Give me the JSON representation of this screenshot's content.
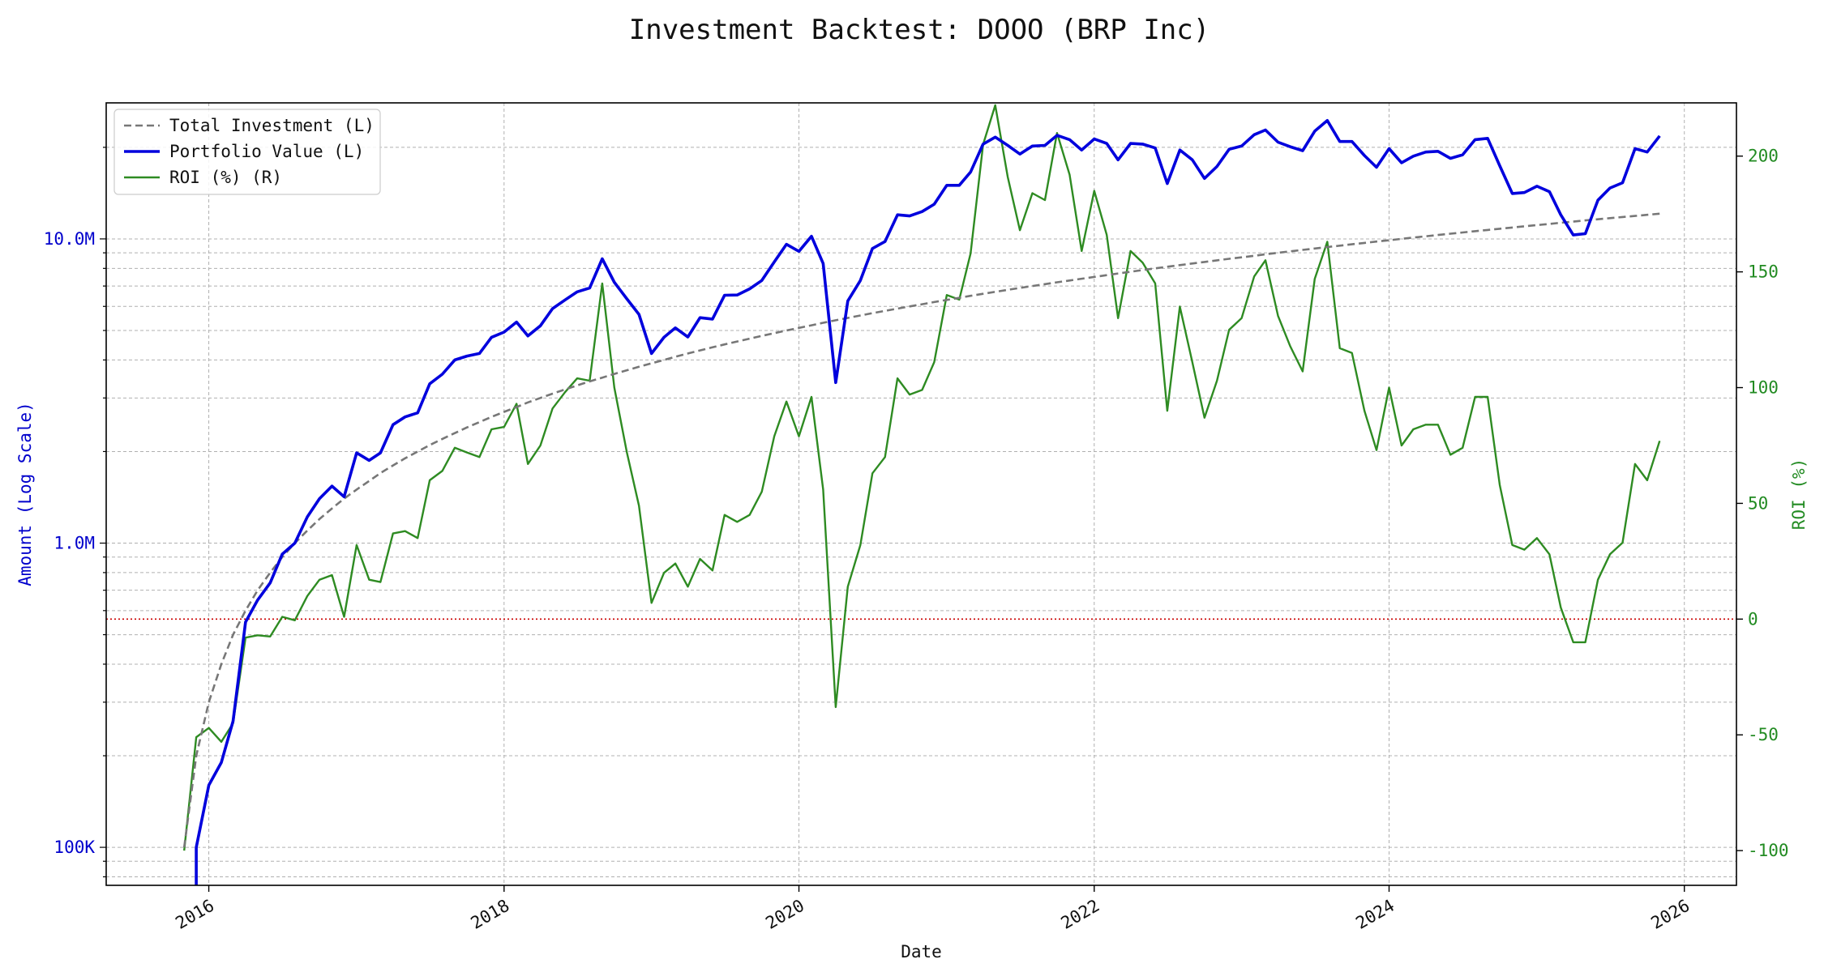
{
  "chart_data": {
    "type": "line",
    "title": "Investment Backtest: DOOO (BRP Inc)",
    "xlabel": "Date",
    "ylabel_left": "Amount (Log Scale)",
    "ylabel_right": "ROI (%)",
    "left_axis": {
      "scale": "log",
      "ylim": [
        75000,
        28000000
      ],
      "labeled_ticks": [
        100000,
        1000000,
        10000000
      ],
      "tick_labels": [
        "100K",
        "1.0M",
        "10.0M"
      ],
      "color": "#0000cc"
    },
    "right_axis": {
      "scale": "linear",
      "ylim": [
        -115,
        223
      ],
      "ticks": [
        -100,
        -50,
        0,
        50,
        100,
        150,
        200
      ],
      "tick_labels": [
        "-100",
        "-50",
        "0",
        "50",
        "100",
        "150",
        "200"
      ],
      "color": "#228b22"
    },
    "x_axis": {
      "xlim": [
        "2015-04-22",
        "2026-05-10"
      ],
      "ticks": [
        "2016-01-01",
        "2018-01-01",
        "2020-01-01",
        "2022-01-01",
        "2024-01-01",
        "2026-01-01"
      ],
      "tick_labels": [
        "2016",
        "2018",
        "2020",
        "2022",
        "2024",
        "2026"
      ]
    },
    "grid": true,
    "legend_position": "top-left",
    "reference_line": {
      "axis": "right",
      "value": 0,
      "color": "#cc0000",
      "style": "dotted"
    },
    "x": [
      "2015-11-01",
      "2015-12-01",
      "2016-01-01",
      "2016-02-01",
      "2016-03-01",
      "2016-04-01",
      "2016-05-01",
      "2016-06-01",
      "2016-07-01",
      "2016-08-01",
      "2016-09-01",
      "2016-10-01",
      "2016-11-01",
      "2016-12-01",
      "2017-01-01",
      "2017-02-01",
      "2017-03-01",
      "2017-04-01",
      "2017-05-01",
      "2017-06-01",
      "2017-07-01",
      "2017-08-01",
      "2017-09-01",
      "2017-10-01",
      "2017-11-01",
      "2017-12-01",
      "2018-01-01",
      "2018-02-01",
      "2018-03-01",
      "2018-04-01",
      "2018-05-01",
      "2018-06-01",
      "2018-07-01",
      "2018-08-01",
      "2018-09-01",
      "2018-10-01",
      "2018-11-01",
      "2018-12-01",
      "2019-01-01",
      "2019-02-01",
      "2019-03-01",
      "2019-04-01",
      "2019-05-01",
      "2019-06-01",
      "2019-07-01",
      "2019-08-01",
      "2019-09-01",
      "2019-10-01",
      "2019-11-01",
      "2019-12-01",
      "2020-01-01",
      "2020-02-01",
      "2020-03-01",
      "2020-04-01",
      "2020-05-01",
      "2020-06-01",
      "2020-07-01",
      "2020-08-01",
      "2020-09-01",
      "2020-10-01",
      "2020-11-01",
      "2020-12-01",
      "2021-01-01",
      "2021-02-01",
      "2021-03-01",
      "2021-04-01",
      "2021-05-01",
      "2021-06-01",
      "2021-07-01",
      "2021-08-01",
      "2021-09-01",
      "2021-10-01",
      "2021-11-01",
      "2021-12-01",
      "2022-01-01",
      "2022-02-01",
      "2022-03-01",
      "2022-04-01",
      "2022-05-01",
      "2022-06-01",
      "2022-07-01",
      "2022-08-01",
      "2022-09-01",
      "2022-10-01",
      "2022-11-01",
      "2022-12-01",
      "2023-01-01",
      "2023-02-01",
      "2023-03-01",
      "2023-04-01",
      "2023-05-01",
      "2023-06-01",
      "2023-07-01",
      "2023-08-01",
      "2023-09-01",
      "2023-10-01",
      "2023-11-01",
      "2023-12-01",
      "2024-01-01",
      "2024-02-01",
      "2024-03-01",
      "2024-04-01",
      "2024-05-01",
      "2024-06-01",
      "2024-07-01",
      "2024-08-01",
      "2024-09-01",
      "2024-10-01",
      "2024-11-01",
      "2024-12-01",
      "2025-01-01",
      "2025-02-01",
      "2025-03-01",
      "2025-04-01",
      "2025-05-01",
      "2025-06-01",
      "2025-07-01",
      "2025-08-01",
      "2025-09-01",
      "2025-10-01",
      "2025-11-01"
    ],
    "series": [
      {
        "name": "Total Investment (L)",
        "axis": "left",
        "color": "#777777",
        "style": "dashed",
        "values": [
          100000,
          200000,
          300000,
          400000,
          500000,
          600000,
          700000,
          800000,
          900000,
          1000000,
          1100000,
          1200000,
          1300000,
          1400000,
          1500000,
          1600000,
          1700000,
          1800000,
          1900000,
          2000000,
          2100000,
          2200000,
          2300000,
          2400000,
          2500000,
          2600000,
          2700000,
          2800000,
          2900000,
          3000000,
          3100000,
          3200000,
          3300000,
          3400000,
          3500000,
          3600000,
          3700000,
          3800000,
          3900000,
          4000000,
          4100000,
          4200000,
          4300000,
          4400000,
          4500000,
          4600000,
          4700000,
          4800000,
          4900000,
          5000000,
          5100000,
          5200000,
          5300000,
          5400000,
          5500000,
          5600000,
          5700000,
          5800000,
          5900000,
          6000000,
          6100000,
          6200000,
          6300000,
          6400000,
          6500000,
          6600000,
          6700000,
          6800000,
          6900000,
          7000000,
          7100000,
          7200000,
          7300000,
          7400000,
          7500000,
          7600000,
          7700000,
          7800000,
          7900000,
          8000000,
          8100000,
          8200000,
          8300000,
          8400000,
          8500000,
          8600000,
          8700000,
          8800000,
          8900000,
          9000000,
          9100000,
          9200000,
          9300000,
          9400000,
          9500000,
          9600000,
          9700000,
          9800000,
          9900000,
          10000000,
          10100000,
          10200000,
          10300000,
          10400000,
          10500000,
          10600000,
          10700000,
          10800000,
          10900000,
          11000000,
          11100000,
          11200000,
          11300000,
          11400000,
          11500000,
          11600000,
          11700000,
          11800000,
          11900000,
          12000000,
          12100000
        ]
      },
      {
        "name": "Portfolio Value (L)",
        "axis": "left",
        "color": "#0000dd",
        "style": "solid",
        "values": [
          null,
          100000,
          160000,
          190000,
          260000,
          550000,
          650000,
          740000,
          920000,
          1000000,
          1220000,
          1400000,
          1540000,
          1420000,
          1980000,
          1870000,
          1980000,
          2450000,
          2600000,
          2680000,
          3340000,
          3590000,
          4000000,
          4120000,
          4200000,
          4750000,
          4940000,
          5330000,
          4800000,
          5180000,
          5900000,
          6300000,
          6700000,
          6900000,
          8600000,
          7200000,
          6350000,
          5650000,
          4200000,
          4750000,
          5100000,
          4760000,
          5510000,
          5450000,
          6530000,
          6540000,
          6850000,
          7300000,
          8400000,
          9600000,
          9100000,
          10200000,
          8300000,
          3370000,
          6250000,
          7300000,
          9300000,
          9800000,
          12000000,
          11900000,
          12300000,
          13000000,
          15000000,
          15000000,
          16600000,
          20500000,
          21600000,
          20300000,
          19000000,
          20200000,
          20300000,
          21900000,
          21200000,
          19600000,
          21300000,
          20600000,
          18200000,
          20600000,
          20500000,
          19900000,
          15200000,
          19600000,
          18200000,
          15800000,
          17300000,
          19700000,
          20200000,
          22000000,
          22800000,
          20800000,
          20100000,
          19500000,
          22600000,
          24500000,
          20900000,
          20900000,
          18800000,
          17200000,
          19800000,
          17800000,
          18700000,
          19300000,
          19400000,
          18400000,
          18900000,
          21200000,
          21400000,
          17400000,
          14100000,
          14200000,
          14900000,
          14300000,
          12000000,
          10300000,
          10400000,
          13400000,
          14700000,
          15300000,
          19800000,
          19300000,
          21800000
        ]
      },
      {
        "name": "ROI (%) (R)",
        "axis": "right",
        "color": "#2e8b22",
        "style": "solid",
        "values": [
          -100,
          -51,
          -47,
          -53,
          -45,
          -8,
          -7,
          -7.5,
          1,
          -0.5,
          10,
          17,
          19,
          1,
          32,
          17,
          16,
          37,
          38,
          35,
          60,
          64,
          74,
          72,
          70,
          82,
          83,
          93,
          67,
          75,
          91,
          98,
          104,
          103,
          145,
          100,
          72,
          49,
          7,
          20,
          24,
          14,
          26,
          21,
          45,
          42,
          45,
          55,
          79,
          94,
          79,
          96,
          56,
          -38,
          14,
          32,
          63,
          70,
          104,
          97,
          99,
          111,
          140,
          138,
          158,
          205,
          222,
          191,
          168,
          184,
          181,
          210,
          192,
          159,
          185,
          166,
          130,
          159,
          154,
          145,
          90,
          135,
          111,
          87,
          103,
          125,
          130,
          148,
          155,
          131,
          118,
          107,
          147,
          163,
          117,
          115,
          90,
          73,
          100,
          75,
          82,
          84,
          84,
          71,
          74,
          96,
          96,
          58,
          32,
          30,
          35,
          28,
          5,
          -10,
          -10,
          17,
          28,
          33,
          67,
          60,
          77
        ]
      }
    ]
  }
}
